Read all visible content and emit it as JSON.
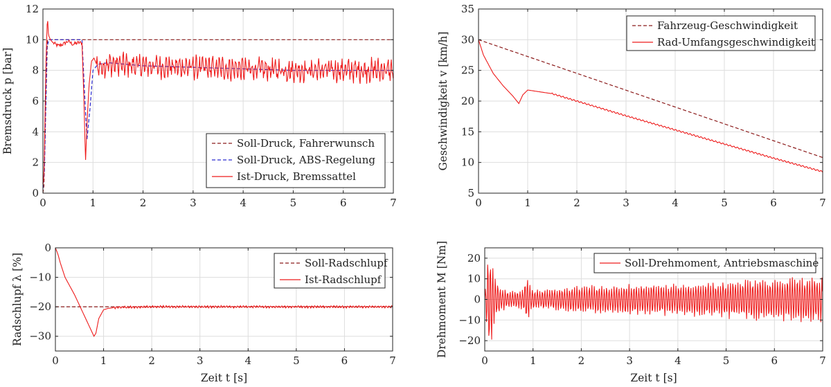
{
  "colors": {
    "dark_red": "#8b1a1a",
    "blue": "#2a2ad0",
    "red": "#ee1c1c",
    "grid": "#dddddd"
  },
  "chart_data": [
    {
      "id": "pressure",
      "type": "line",
      "ylabel": "Bremsdruck p [bar]",
      "xlabel": "",
      "xlim": [
        0,
        7
      ],
      "ylim": [
        0,
        12
      ],
      "xticks": [
        "0",
        "1",
        "2",
        "3",
        "4",
        "5",
        "6",
        "7"
      ],
      "yticks": [
        "0",
        "2",
        "4",
        "6",
        "8",
        "10",
        "12"
      ],
      "grid": true,
      "legend": "bottom-right",
      "series": [
        {
          "name": "Soll-Druck, Fahrerwunsch",
          "style": "dashed",
          "color": "#8b1a1a",
          "x": [
            0,
            0.02,
            0.09,
            7
          ],
          "y": [
            0,
            0.5,
            10,
            10
          ]
        },
        {
          "name": "Soll-Druck, ABS-Regelung",
          "style": "dashed",
          "color": "#2a2ad0",
          "x": [
            0,
            0.03,
            0.08,
            0.12,
            0.3,
            0.5,
            0.78,
            0.84,
            0.88,
            0.94,
            1.0,
            1.1,
            1.3,
            2.0,
            3.0,
            4.0,
            5.0,
            6.0,
            7.0
          ],
          "y": [
            0.3,
            1.5,
            9.5,
            10,
            10,
            10,
            10,
            6.0,
            3.5,
            5.5,
            8.0,
            8.4,
            8.5,
            8.3,
            8.2,
            8.1,
            8.0,
            8.0,
            8.0
          ]
        },
        {
          "name": "Ist-Druck, Bremssattel",
          "style": "solid",
          "color": "#ee1c1c",
          "x": [
            0,
            0.02,
            0.06,
            0.09,
            0.11,
            0.15,
            0.2,
            0.3,
            0.4,
            0.5,
            0.6,
            0.7,
            0.78,
            0.82,
            0.85,
            0.88,
            0.92,
            0.97,
            1.02,
            1.1,
            1.3,
            2.0,
            3.0,
            4.0,
            5.0,
            6.0,
            7.0
          ],
          "y": [
            0.5,
            1.0,
            8.5,
            11.6,
            10.3,
            10.0,
            9.8,
            9.6,
            9.7,
            9.9,
            9.7,
            9.8,
            9.8,
            6.0,
            2.0,
            4.5,
            7.0,
            8.6,
            8.8,
            8.2,
            8.4,
            8.3,
            8.2,
            8.1,
            8.0,
            8.0,
            8.0
          ]
        }
      ]
    },
    {
      "id": "speed",
      "type": "line",
      "ylabel": "Geschwindigkeit v [km/h]",
      "xlabel": "",
      "xlim": [
        0,
        7
      ],
      "ylim": [
        5,
        35
      ],
      "xticks": [
        "0",
        "1",
        "2",
        "3",
        "4",
        "5",
        "6",
        "7"
      ],
      "yticks": [
        "5",
        "10",
        "15",
        "20",
        "25",
        "30",
        "35"
      ],
      "grid": true,
      "legend": "top-right",
      "series": [
        {
          "name": "Fahrzeug-Geschwindigkeit",
          "style": "dashed",
          "color": "#8b1a1a",
          "x": [
            0,
            7
          ],
          "y": [
            30,
            10.8
          ]
        },
        {
          "name": "Rad-Umfangsgeschwindigkeit",
          "style": "solid",
          "color": "#ee1c1c",
          "x": [
            0,
            0.1,
            0.3,
            0.5,
            0.7,
            0.82,
            0.9,
            1.0,
            1.5,
            2.0,
            3.0,
            4.0,
            5.0,
            6.0,
            7.0
          ],
          "y": [
            30,
            27.5,
            24.5,
            22.5,
            20.8,
            19.6,
            21.0,
            21.8,
            21.2,
            20.0,
            17.6,
            15.3,
            13.0,
            10.7,
            8.5
          ]
        }
      ]
    },
    {
      "id": "slip",
      "type": "line",
      "ylabel": "Radschlupf λ [%]",
      "xlabel": "Zeit t [s]",
      "xlim": [
        0,
        7
      ],
      "ylim": [
        -35,
        0
      ],
      "xticks": [
        "0",
        "1",
        "2",
        "3",
        "4",
        "5",
        "6",
        "7"
      ],
      "yticks": [
        "0",
        "−10",
        "−20",
        "−30"
      ],
      "grid": true,
      "legend": "top-right",
      "series": [
        {
          "name": "Soll-Radschlupf",
          "style": "dashed",
          "color": "#8b1a1a",
          "x": [
            0,
            7
          ],
          "y": [
            -20,
            -20
          ]
        },
        {
          "name": "Ist-Radschlupf",
          "style": "solid",
          "color": "#ee1c1c",
          "x": [
            0,
            0.05,
            0.1,
            0.2,
            0.4,
            0.6,
            0.8,
            0.84,
            0.9,
            1.0,
            1.1,
            1.3,
            2.0,
            3.0,
            4.0,
            5.0,
            6.0,
            7.0
          ],
          "y": [
            0,
            -2,
            -5,
            -10,
            -16,
            -23,
            -30,
            -29,
            -24,
            -21,
            -20.5,
            -20.2,
            -20,
            -20,
            -20,
            -20,
            -20,
            -20
          ]
        }
      ]
    },
    {
      "id": "torque",
      "type": "line",
      "ylabel": "Drehmoment M [Nm]",
      "xlabel": "Zeit t [s]",
      "xlim": [
        0,
        7
      ],
      "ylim": [
        -25,
        25
      ],
      "xticks": [
        "0",
        "1",
        "2",
        "3",
        "4",
        "5",
        "6",
        "7"
      ],
      "yticks": [
        "−20",
        "−10",
        "0",
        "10",
        "20"
      ],
      "grid": true,
      "legend": "top-right",
      "series": [
        {
          "name": "Soll-Drehmoment, Antriebsmaschine",
          "style": "solid",
          "color": "#ee1c1c",
          "x": [
            0,
            0.05,
            0.1,
            0.15,
            0.2,
            0.3,
            0.5,
            0.8,
            0.85,
            0.9,
            0.95,
            1.0,
            1.5,
            2.0,
            3.0,
            4.0,
            5.0,
            6.0,
            7.0
          ],
          "amplitude": [
            3,
            15,
            22,
            17,
            10,
            6,
            4,
            4,
            9,
            12,
            6,
            4,
            5,
            6,
            6.5,
            7,
            8,
            9,
            10
          ]
        }
      ]
    }
  ]
}
